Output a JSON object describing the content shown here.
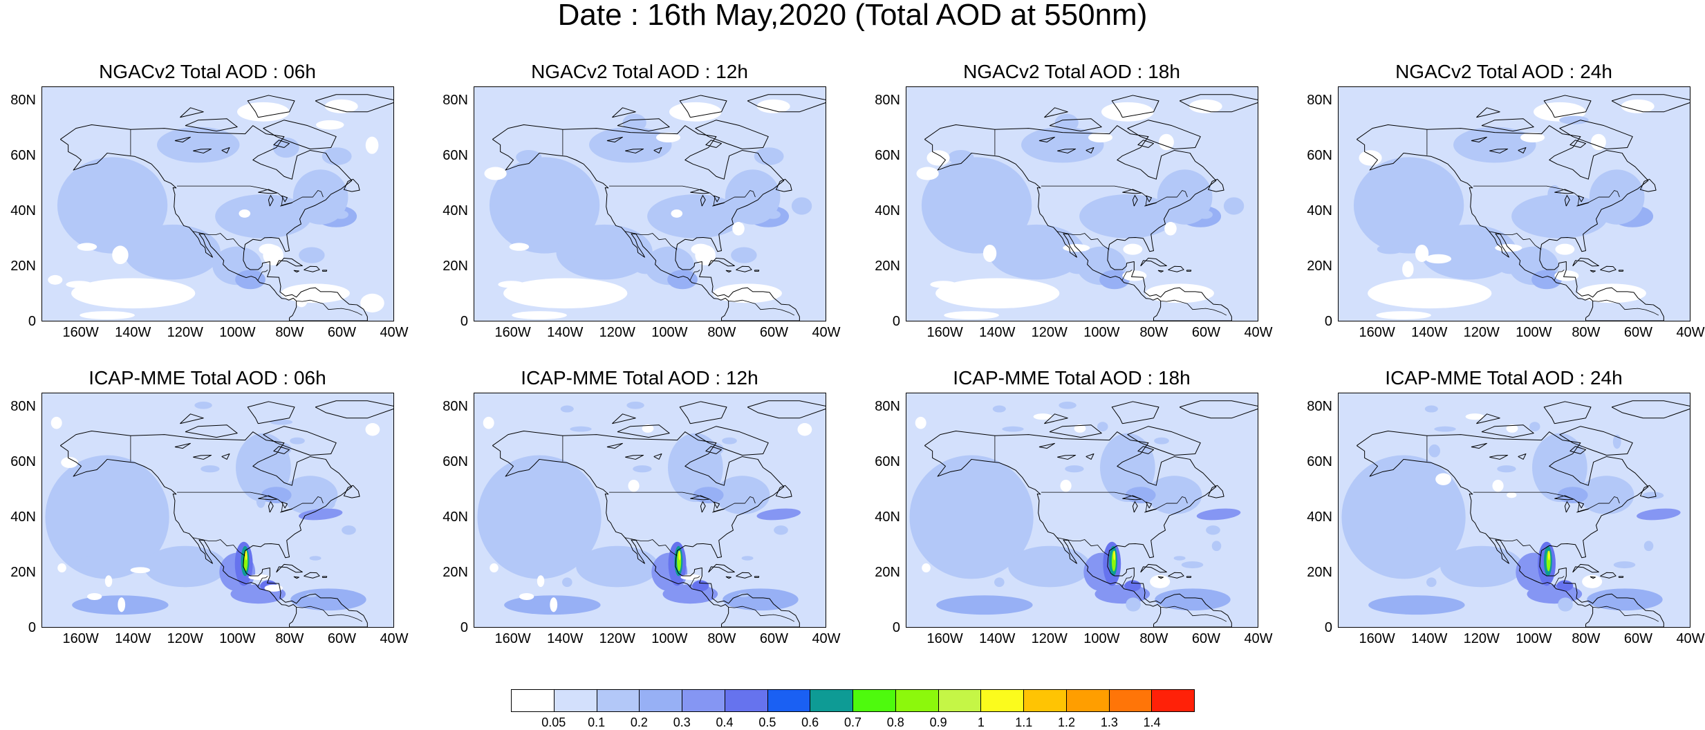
{
  "title": "Date : 16th May,2020 (Total AOD at 550nm)",
  "panels": [
    {
      "title": "NGACv2 Total AOD : 06h",
      "model": "NGACv2",
      "hour": "06h"
    },
    {
      "title": "NGACv2 Total AOD : 12h",
      "model": "NGACv2",
      "hour": "12h"
    },
    {
      "title": "NGACv2 Total AOD : 18h",
      "model": "NGACv2",
      "hour": "18h"
    },
    {
      "title": "NGACv2 Total AOD : 24h",
      "model": "NGACv2",
      "hour": "24h"
    },
    {
      "title": "ICAP-MME Total AOD : 06h",
      "model": "ICAP-MME",
      "hour": "06h"
    },
    {
      "title": "ICAP-MME Total AOD : 12h",
      "model": "ICAP-MME",
      "hour": "12h"
    },
    {
      "title": "ICAP-MME Total AOD : 18h",
      "model": "ICAP-MME",
      "hour": "18h"
    },
    {
      "title": "ICAP-MME Total AOD : 24h",
      "model": "ICAP-MME",
      "hour": "24h"
    }
  ],
  "axes": {
    "lat_labels": [
      "80N",
      "60N",
      "40N",
      "20N",
      "0"
    ],
    "lon_labels": [
      "160W",
      "140W",
      "120W",
      "100W",
      "80W",
      "60W",
      "40W"
    ]
  },
  "colorbar": {
    "labels": [
      "0.05",
      "0.1",
      "0.2",
      "0.3",
      "0.4",
      "0.5",
      "0.6",
      "0.7",
      "0.8",
      "0.9",
      "1",
      "1.1",
      "1.2",
      "1.3",
      "1.4"
    ],
    "colors": [
      "#ffffff",
      "#d3e0fc",
      "#b3c8f8",
      "#97b0f5",
      "#8596f3",
      "#6673ee",
      "#1a60f3",
      "#0e9b95",
      "#4efa0d",
      "#8cf80c",
      "#c5f646",
      "#fbfb1d",
      "#ffc403",
      "#ff9e00",
      "#ff7508",
      "#ff2108"
    ]
  }
}
